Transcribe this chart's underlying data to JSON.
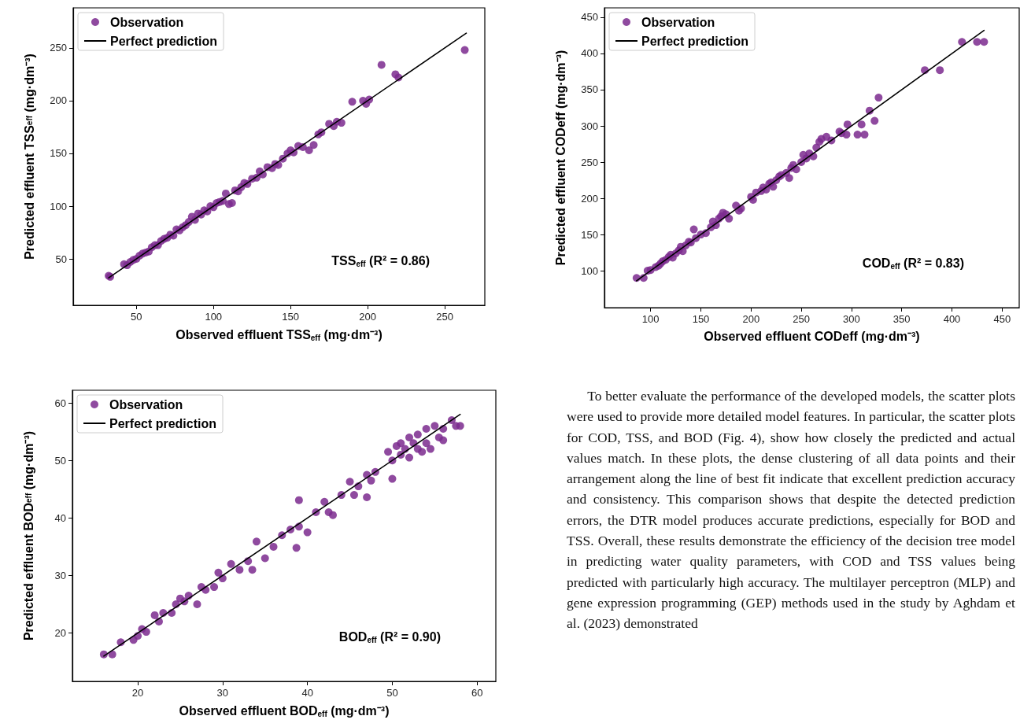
{
  "chart_data": [
    {
      "type": "scatter",
      "xlabel": "Observed effluent TSS$_{eff}$ (mg·dm⁻³)",
      "ylabel": "Predicted effluent TSS$_{eff}$ (mg·dm⁻³)",
      "xlim": [
        9,
        276
      ],
      "ylim": [
        6,
        288
      ],
      "xticks": [
        50,
        100,
        150,
        200,
        250
      ],
      "yticks": [
        50,
        100,
        150,
        200,
        250
      ],
      "legend": "top left",
      "marker": "circle",
      "annotations": [
        "TSS$_{eff}$ (R² = 0.86)"
      ],
      "series": [
        {
          "name": "Observation",
          "color": "#7b2a8e",
          "x": [
            32,
            33,
            42,
            44,
            46,
            48,
            50,
            52,
            54,
            56,
            58,
            60,
            62,
            64,
            66,
            68,
            70,
            72,
            74,
            76,
            78,
            80,
            82,
            84,
            86,
            88,
            90,
            92,
            94,
            96,
            98,
            100,
            102,
            104,
            106,
            108,
            110,
            112,
            114,
            116,
            118,
            120,
            122,
            125,
            128,
            130,
            132,
            135,
            138,
            140,
            142,
            145,
            148,
            150,
            152,
            155,
            158,
            162,
            165,
            168,
            170,
            175,
            178,
            180,
            183,
            190,
            197,
            199,
            201,
            209,
            218,
            220,
            263
          ],
          "values": [
            34,
            33,
            45,
            44,
            47,
            49,
            50,
            53,
            55,
            56,
            57,
            61,
            63,
            63,
            67,
            69,
            70,
            73,
            72,
            78,
            77,
            80,
            82,
            85,
            90,
            87,
            93,
            92,
            96,
            95,
            100,
            99,
            103,
            104,
            105,
            112,
            102,
            103,
            115,
            114,
            118,
            122,
            121,
            126,
            127,
            133,
            130,
            137,
            136,
            140,
            139,
            145,
            150,
            153,
            151,
            157,
            156,
            153,
            158,
            168,
            170,
            178,
            176,
            180,
            179,
            199,
            200,
            197,
            201,
            234,
            225,
            222,
            248
          ]
        },
        {
          "type": "line",
          "name": "Perfect prediction",
          "color": "#000000",
          "marker": "none",
          "line_style": "solid",
          "x": [
            32,
            264
          ],
          "values": [
            32,
            264
          ]
        }
      ]
    },
    {
      "type": "scatter",
      "xlabel": "Observed effluent CODeff (mg·dm⁻³)",
      "ylabel": "Predicted effluent CODeff (mg·dm⁻³)",
      "xlim": [
        54,
        467
      ],
      "ylim": [
        49,
        463
      ],
      "xticks": [
        100,
        150,
        200,
        250,
        300,
        350,
        400,
        450
      ],
      "yticks": [
        100,
        150,
        200,
        250,
        300,
        350,
        400,
        450
      ],
      "legend": "top left",
      "marker": "circle",
      "annotations": [
        "COD$_{eff}$ (R² = 0.83)"
      ],
      "series": [
        {
          "name": "Observation",
          "color": "#7b2a8e",
          "x": [
            86,
            93,
            97,
            100,
            105,
            108,
            110,
            112,
            115,
            118,
            120,
            122,
            125,
            128,
            130,
            132,
            135,
            138,
            140,
            143,
            145,
            150,
            155,
            160,
            162,
            165,
            168,
            170,
            172,
            175,
            178,
            185,
            188,
            190,
            200,
            202,
            205,
            210,
            212,
            215,
            218,
            220,
            222,
            225,
            228,
            230,
            235,
            238,
            240,
            242,
            245,
            250,
            252,
            255,
            258,
            262,
            265,
            268,
            270,
            275,
            280,
            288,
            290,
            295,
            296,
            306,
            310,
            313,
            318,
            323,
            327,
            373,
            388,
            410,
            425,
            432
          ],
          "values": [
            90,
            90,
            100,
            101,
            105,
            107,
            110,
            113,
            115,
            119,
            122,
            118,
            124,
            128,
            133,
            127,
            135,
            140,
            139,
            157,
            145,
            150,
            152,
            160,
            168,
            163,
            172,
            175,
            180,
            178,
            172,
            190,
            183,
            186,
            202,
            198,
            208,
            210,
            215,
            212,
            220,
            222,
            216,
            225,
            230,
            232,
            235,
            228,
            242,
            246,
            240,
            250,
            260,
            255,
            262,
            258,
            270,
            278,
            282,
            285,
            280,
            292,
            290,
            288,
            302,
            288,
            302,
            288,
            321,
            307,
            339,
            377,
            377,
            416,
            416,
            416
          ]
        },
        {
          "type": "line",
          "name": "Perfect prediction",
          "color": "#000000",
          "marker": "none",
          "line_style": "solid",
          "x": [
            86,
            432
          ],
          "values": [
            86,
            432
          ]
        }
      ]
    },
    {
      "type": "scatter",
      "xlabel": "Observed effluent BOD$_{eff}$ (mg·dm⁻³)",
      "ylabel": "Predicted effluent BOD$_{eff}$ (mg·dm⁻³)",
      "xlim": [
        12.3,
        62.2
      ],
      "ylim": [
        11.6,
        62.2
      ],
      "xticks": [
        20,
        30,
        40,
        50,
        60
      ],
      "yticks": [
        20,
        30,
        40,
        50,
        60
      ],
      "legend": "top left",
      "marker": "circle",
      "annotations": [
        "BOD$_{eff}$ (R² = 0.90)"
      ],
      "series": [
        {
          "name": "Observation",
          "color": "#7b2a8e",
          "x": [
            16,
            17,
            18,
            19.5,
            20,
            20.5,
            21,
            22,
            22.5,
            23,
            24,
            24.5,
            25,
            25.5,
            26,
            27,
            27.5,
            28,
            29,
            29.5,
            30,
            31,
            32,
            33,
            33.5,
            34,
            35,
            36,
            37,
            38,
            38.7,
            39,
            39,
            40,
            41,
            42,
            42.5,
            43,
            44,
            45,
            45.5,
            46,
            47,
            47.5,
            47,
            48,
            49.5,
            50,
            50,
            50.5,
            51,
            51,
            51.5,
            52,
            52,
            52.5,
            53,
            53,
            53.5,
            54,
            54,
            54.5,
            55,
            55.5,
            56,
            56,
            57,
            57.5,
            58
          ],
          "values": [
            16.3,
            16.3,
            18.4,
            18.8,
            19.5,
            20.7,
            20.2,
            23.1,
            22,
            23.5,
            23.5,
            25,
            26,
            25.5,
            26.5,
            25,
            28,
            27.5,
            28,
            30.5,
            29.5,
            32,
            31,
            32.5,
            31,
            35.9,
            33,
            35,
            37,
            38,
            34.8,
            38.5,
            43.1,
            37.5,
            41,
            42.8,
            41,
            40.5,
            44,
            46.3,
            44,
            45.5,
            47.5,
            46.5,
            43.6,
            48,
            51.5,
            50,
            46.8,
            52.5,
            53,
            51,
            52,
            54,
            50.5,
            53,
            52,
            54.5,
            51.5,
            55.5,
            53,
            52,
            56,
            54,
            55.5,
            53.5,
            57,
            56,
            56
          ]
        },
        {
          "type": "line",
          "name": "Perfect prediction",
          "color": "#000000",
          "marker": "none",
          "line_style": "solid",
          "x": [
            16,
            58
          ],
          "values": [
            16,
            58
          ]
        }
      ]
    },
    {
      "type": "other",
      "annotations": [
        "To better evaluate the performance of the developed models, the scatter plots were used to provide more detailed model features. In particular, the scatter plots for COD, TSS, and BOD (Fig. 4), show how closely the predicted and actual values match. In these plots, the dense clustering of all data points and their arrangement along the line of best fit indicate that excellent prediction accuracy and consistency. This comparison shows that despite the detected prediction errors, the DTR model produces accurate predictions, especially for BOD and TSS. Overall, these results demonstrate the efficiency of the decision tree model in predicting water quality parameters, with COD and TSS values being predicted with particularly high accuracy. The multilayer perceptron (MLP) and gene expression programming (GEP) methods used in the study by Aghdam et al. (2023) demonstrated"
      ]
    }
  ]
}
